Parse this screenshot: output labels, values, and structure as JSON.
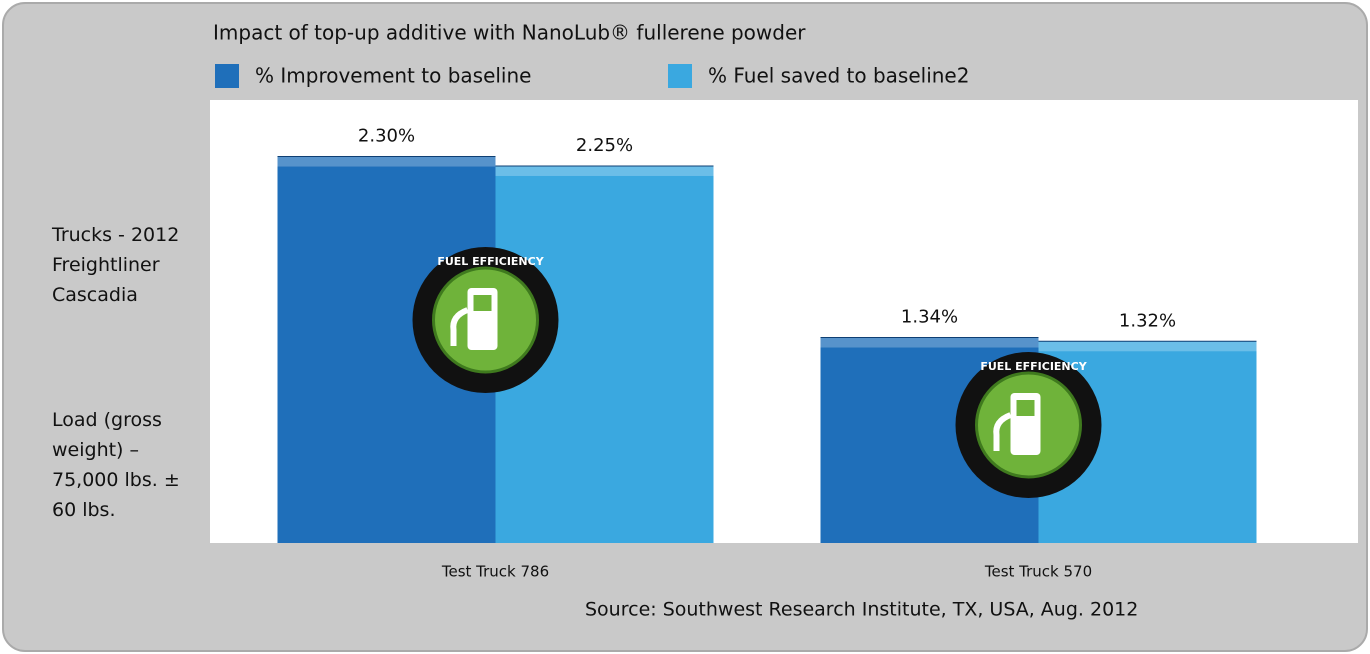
{
  "chart_data": {
    "type": "bar",
    "title": "Impact of top-up additive with NanoLub® fullerene powder",
    "categories": [
      "Test Truck 786",
      "Test Truck 570"
    ],
    "series": [
      {
        "name": "% Improvement to baseline",
        "color": "#1f6fba",
        "values": [
          2.3,
          1.34
        ],
        "value_labels": [
          "2.30%",
          "1.34%"
        ]
      },
      {
        "name": "% Fuel saved to baseline2",
        "color": "#3aa8e0",
        "values": [
          2.25,
          1.32
        ],
        "value_labels": [
          "2.25%",
          "1.32%"
        ]
      }
    ],
    "ylim": [
      0.25,
      2.6
    ],
    "annotations": [
      "Trucks - 2012 Freightliner Cascadia",
      "Load (gross weight) – 75,000 lbs. ± 60 lbs."
    ],
    "source": "Source: Southwest Research Institute, TX, USA, Aug. 2012",
    "badge_text": "FUEL EFFICIENCY",
    "legend": "top-left"
  }
}
